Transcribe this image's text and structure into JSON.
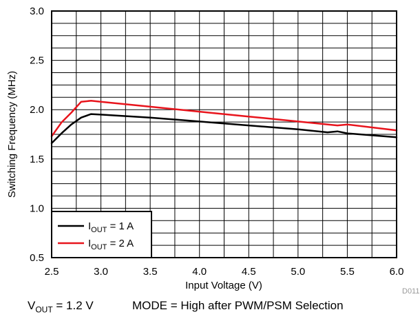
{
  "chart_data": {
    "type": "line",
    "title": "",
    "xlabel": "Input Voltage (V)",
    "ylabel": "Switching Frequency (MHz)",
    "xlim": [
      2.5,
      6.0
    ],
    "ylim": [
      0.5,
      3.0
    ],
    "x_ticks": [
      "2.5",
      "3.0",
      "3.5",
      "4.0",
      "4.5",
      "5.0",
      "5.5",
      "6.0"
    ],
    "y_ticks": [
      "0.5",
      "1.0",
      "1.5",
      "2.0",
      "2.5",
      "3.0"
    ],
    "grid": true,
    "grid_minor_x": 0.25,
    "grid_minor_y": 0.125,
    "legend_position": "bottom-left",
    "series": [
      {
        "name": "IOUT = 1 A",
        "label_main": "I",
        "label_sub": "OUT",
        "label_rest": " = 1 A",
        "color": "#000000",
        "x": [
          2.5,
          2.6,
          2.7,
          2.8,
          2.9,
          3.0,
          3.5,
          4.0,
          4.5,
          5.0,
          5.3,
          5.4,
          5.5,
          6.0
        ],
        "y": [
          1.66,
          1.76,
          1.85,
          1.92,
          1.955,
          1.95,
          1.92,
          1.88,
          1.84,
          1.8,
          1.77,
          1.78,
          1.76,
          1.72
        ]
      },
      {
        "name": "IOUT = 2 A",
        "label_main": "I",
        "label_sub": "OUT",
        "label_rest": " = 2 A",
        "color": "#e8141c",
        "x": [
          2.5,
          2.6,
          2.7,
          2.8,
          2.9,
          3.0,
          3.5,
          4.0,
          4.5,
          5.0,
          5.4,
          5.5,
          6.0
        ],
        "y": [
          1.73,
          1.87,
          1.97,
          2.08,
          2.09,
          2.08,
          2.03,
          1.98,
          1.93,
          1.88,
          1.84,
          1.85,
          1.79
        ]
      }
    ]
  },
  "figure_id": "D011",
  "caption": {
    "vout_main": "V",
    "vout_sub": "OUT",
    "vout_rest": " = 1.2 V",
    "mode": "MODE = High after PWM/PSM Selection"
  }
}
